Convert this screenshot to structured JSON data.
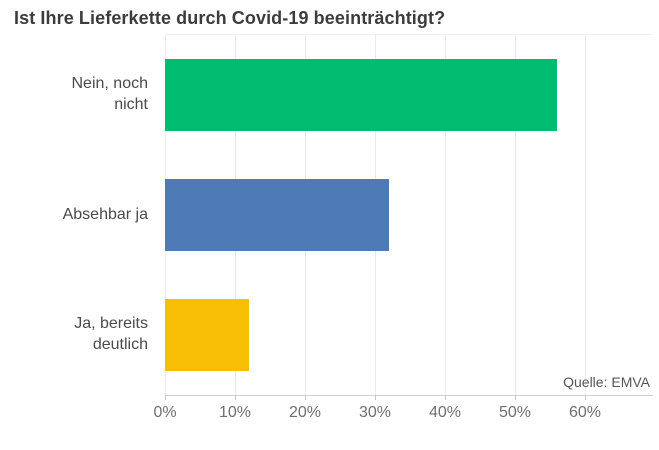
{
  "title": "Ist Ihre Lieferkette durch Covid-19 beeinträchtigt?",
  "source_label": "Quelle: EMVA",
  "chart_data": {
    "type": "bar",
    "orientation": "horizontal",
    "title": "Ist Ihre Lieferkette durch Covid-19 beeinträchtigt?",
    "categories": [
      "Nein, noch nicht",
      "Absehbar ja",
      "Ja, bereits deutlich"
    ],
    "category_labels": [
      "Nein, noch\nnicht",
      "Absehbar ja",
      "Ja, bereits\ndeutlich"
    ],
    "values": [
      56,
      32,
      12
    ],
    "unit": "%",
    "bar_colors": [
      "#00bc70",
      "#4e7ab5",
      "#f8bd05"
    ],
    "x_ticks": [
      "0%",
      "10%",
      "20%",
      "30%",
      "40%",
      "50%",
      "60%"
    ],
    "x_tick_values": [
      0,
      10,
      20,
      30,
      40,
      50,
      60
    ],
    "xlim": [
      0,
      60
    ],
    "grid": "vertical",
    "legend": "none",
    "source": "Quelle: EMVA",
    "style_colors": {
      "gridline": "#e9e9e9",
      "axis_line": "#d2d2d2",
      "title_text": "#3c3c3c",
      "category_text": "#4a4a4a",
      "tick_text": "#6f6f6f",
      "source_text": "#565656",
      "background": "#ffffff"
    }
  }
}
